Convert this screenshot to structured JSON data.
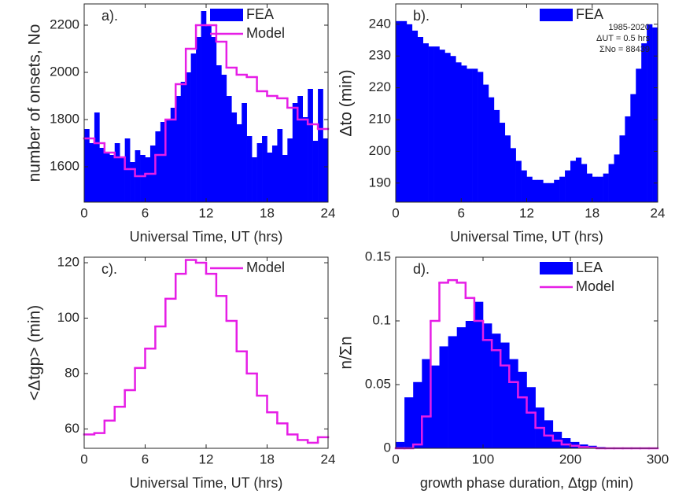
{
  "chart_data": [
    {
      "type": "histogram",
      "panel_label": "a).",
      "xlabel": "Universal Time, UT (hrs)",
      "ylabel": "number of onsets, No",
      "xlim": [
        0,
        24
      ],
      "xticks": [
        0,
        6,
        12,
        18,
        24
      ],
      "ylim": [
        1450,
        2290
      ],
      "yticks": [
        1600,
        1800,
        2000,
        2200
      ],
      "legend": "upper right",
      "series": [
        {
          "name": "FEA",
          "style": "bar",
          "color": "#0000ff",
          "bins": [
            0,
            0.5,
            1,
            1.5,
            2,
            2.5,
            3,
            3.5,
            4,
            4.5,
            5,
            5.5,
            6,
            6.5,
            7,
            7.5,
            8,
            8.5,
            9,
            9.5,
            10,
            10.5,
            11,
            11.5,
            12,
            12.5,
            13,
            13.5,
            14,
            14.5,
            15,
            15.5,
            16,
            16.5,
            17,
            17.5,
            18,
            18.5,
            19,
            19.5,
            20,
            20.5,
            21,
            21.5,
            22,
            22.5,
            23,
            23.5,
            24
          ],
          "values": [
            1760,
            1700,
            1830,
            1680,
            1660,
            1650,
            1700,
            1640,
            1720,
            1620,
            1670,
            1650,
            1640,
            1690,
            1750,
            1790,
            1800,
            1850,
            1900,
            1960,
            2000,
            2080,
            2150,
            2260,
            2200,
            2150,
            2030,
            1990,
            1900,
            1830,
            1780,
            1870,
            1730,
            1640,
            1700,
            1730,
            1660,
            1690,
            1760,
            1650,
            1720,
            1870,
            1900,
            1810,
            1930,
            1710,
            1930,
            1720
          ]
        },
        {
          "name": "Model",
          "style": "step",
          "color": "#e61ee6",
          "bins": [
            0,
            1,
            2,
            3,
            4,
            5,
            6,
            7,
            8,
            9,
            10,
            11,
            12,
            13,
            14,
            15,
            16,
            17,
            18,
            19,
            20,
            21,
            22,
            23,
            24
          ],
          "values": [
            1720,
            1700,
            1660,
            1640,
            1590,
            1560,
            1570,
            1650,
            1800,
            1950,
            2100,
            2200,
            2200,
            2130,
            2020,
            1990,
            1980,
            1920,
            1900,
            1890,
            1850,
            1800,
            1780,
            1760
          ]
        }
      ]
    },
    {
      "type": "histogram",
      "panel_label": "b).",
      "xlabel": "Universal Time, UT (hrs)",
      "ylabel": "Δto (min)",
      "xlim": [
        0,
        24
      ],
      "xticks": [
        0,
        6,
        12,
        18,
        24
      ],
      "ylim": [
        184,
        246.4
      ],
      "yticks": [
        190,
        200,
        210,
        220,
        230,
        240
      ],
      "legend": "upper right",
      "annotations": [
        "1985-2020",
        "ΔUT = 0.5 hrs",
        "ΣNo = 88439"
      ],
      "series": [
        {
          "name": "FEA",
          "style": "bar",
          "color": "#0000ff",
          "bins": [
            0,
            0.5,
            1,
            1.5,
            2,
            2.5,
            3,
            3.5,
            4,
            4.5,
            5,
            5.5,
            6,
            6.5,
            7,
            7.5,
            8,
            8.5,
            9,
            9.5,
            10,
            10.5,
            11,
            11.5,
            12,
            12.5,
            13,
            13.5,
            14,
            14.5,
            15,
            15.5,
            16,
            16.5,
            17,
            17.5,
            18,
            18.5,
            19,
            19.5,
            20,
            20.5,
            21,
            21.5,
            22,
            22.5,
            23,
            23.5,
            24
          ],
          "values": [
            241,
            241,
            240,
            238,
            236,
            234,
            233,
            233,
            232,
            231,
            230,
            228,
            227,
            226,
            226,
            225,
            221,
            217,
            213,
            209,
            205,
            201,
            197,
            194,
            192,
            191,
            191,
            190,
            190,
            191,
            192,
            194,
            197,
            198,
            196,
            193,
            192,
            192,
            193,
            196,
            199,
            205,
            211,
            218,
            226,
            234,
            240,
            239
          ]
        }
      ]
    },
    {
      "type": "step",
      "panel_label": "c).",
      "xlabel": "Universal Time, UT (hrs)",
      "ylabel": "<Δtgp> (min)",
      "xlim": [
        0,
        24
      ],
      "xticks": [
        0,
        6,
        12,
        18,
        24
      ],
      "ylim": [
        53,
        122
      ],
      "yticks": [
        60,
        80,
        100,
        120
      ],
      "legend": "upper right",
      "series": [
        {
          "name": "Model",
          "style": "step",
          "color": "#e61ee6",
          "bins": [
            0,
            1,
            2,
            3,
            4,
            5,
            6,
            7,
            8,
            9,
            10,
            11,
            12,
            13,
            14,
            15,
            16,
            17,
            18,
            19,
            20,
            21,
            22,
            23,
            24
          ],
          "values": [
            58,
            58.5,
            63,
            68,
            74,
            82,
            89,
            97,
            107,
            116,
            121,
            120,
            116,
            108,
            99,
            88,
            80,
            72,
            66,
            62,
            58,
            56,
            55,
            57
          ]
        }
      ]
    },
    {
      "type": "histogram",
      "panel_label": "d).",
      "xlabel": "growth phase duration, Δtgp (min)",
      "ylabel": "n/Σn",
      "xlim": [
        0,
        300
      ],
      "xticks": [
        0,
        100,
        200,
        300
      ],
      "ylim": [
        0,
        0.15
      ],
      "yticks": [
        0,
        0.05,
        0.1,
        0.15
      ],
      "legend": "upper right",
      "series": [
        {
          "name": "LEA",
          "style": "bar",
          "color": "#0000ff",
          "bins": [
            0,
            10,
            20,
            30,
            40,
            50,
            60,
            70,
            80,
            90,
            100,
            110,
            120,
            130,
            140,
            150,
            160,
            170,
            180,
            190,
            200,
            210,
            220,
            230,
            240,
            250,
            260,
            270,
            280,
            290,
            300
          ],
          "values": [
            0.005,
            0.04,
            0.052,
            0.07,
            0.065,
            0.08,
            0.088,
            0.095,
            0.1,
            0.115,
            0.098,
            0.09,
            0.083,
            0.07,
            0.06,
            0.048,
            0.032,
            0.022,
            0.013,
            0.008,
            0.005,
            0.003,
            0.002,
            0.001,
            0.0005,
            0,
            0,
            0,
            0,
            0
          ]
        },
        {
          "name": "Model",
          "style": "step",
          "color": "#e61ee6",
          "bins": [
            0,
            10,
            20,
            30,
            40,
            50,
            60,
            70,
            80,
            90,
            100,
            110,
            120,
            130,
            140,
            150,
            160,
            170,
            180,
            190,
            200,
            210,
            220,
            230,
            240,
            250,
            260,
            270,
            280,
            290,
            300
          ],
          "values": [
            0,
            0,
            0.003,
            0.025,
            0.1,
            0.13,
            0.132,
            0.13,
            0.118,
            0.1,
            0.085,
            0.077,
            0.065,
            0.052,
            0.04,
            0.028,
            0.016,
            0.01,
            0.006,
            0.003,
            0.002,
            0.001,
            0.0005,
            0,
            0,
            0,
            0,
            0,
            0,
            0
          ]
        }
      ]
    }
  ]
}
